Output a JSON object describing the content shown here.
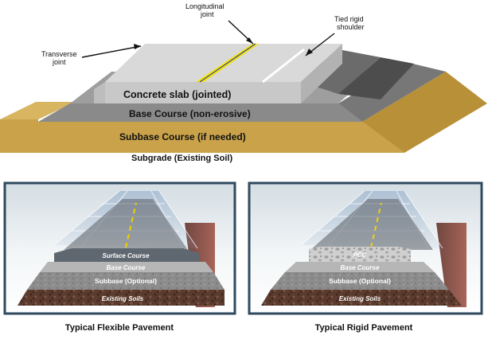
{
  "top_diagram": {
    "labels": {
      "longitudinal_line1": "Longitudinal",
      "longitudinal_line2": "joint",
      "tied_line1": "Tied rigid",
      "tied_line2": "shoulder",
      "transverse_line1": "Transverse",
      "transverse_line2": "joint",
      "slab": "Concrete slab (jointed)",
      "base": "Base Course (non-erosive)",
      "subbase": "Subbase Course (if needed)",
      "subgrade": "Subgrade (Existing Soil)"
    }
  },
  "flexible_panel": {
    "surface": "Surface Course",
    "base": "Base Course",
    "subbase": "Subbase (Optional)",
    "soils": "Existing Soils",
    "caption": "Typical Flexible Pavement"
  },
  "rigid_panel": {
    "pcc": "PCC",
    "base": "Base Course",
    "subbase": "Subbase (Optional)",
    "soils": "Existing Soils",
    "caption": "Typical Rigid Pavement"
  },
  "colors": {
    "slab_top": "#d9d9d9",
    "slab_front": "#c8c8c8",
    "base": "#8a8a8a",
    "subbase": "#c9a24a",
    "shoulder": "#5a5a5a",
    "joint_yellow": "#f2e600",
    "panel_frame": "#2f4a5e"
  }
}
